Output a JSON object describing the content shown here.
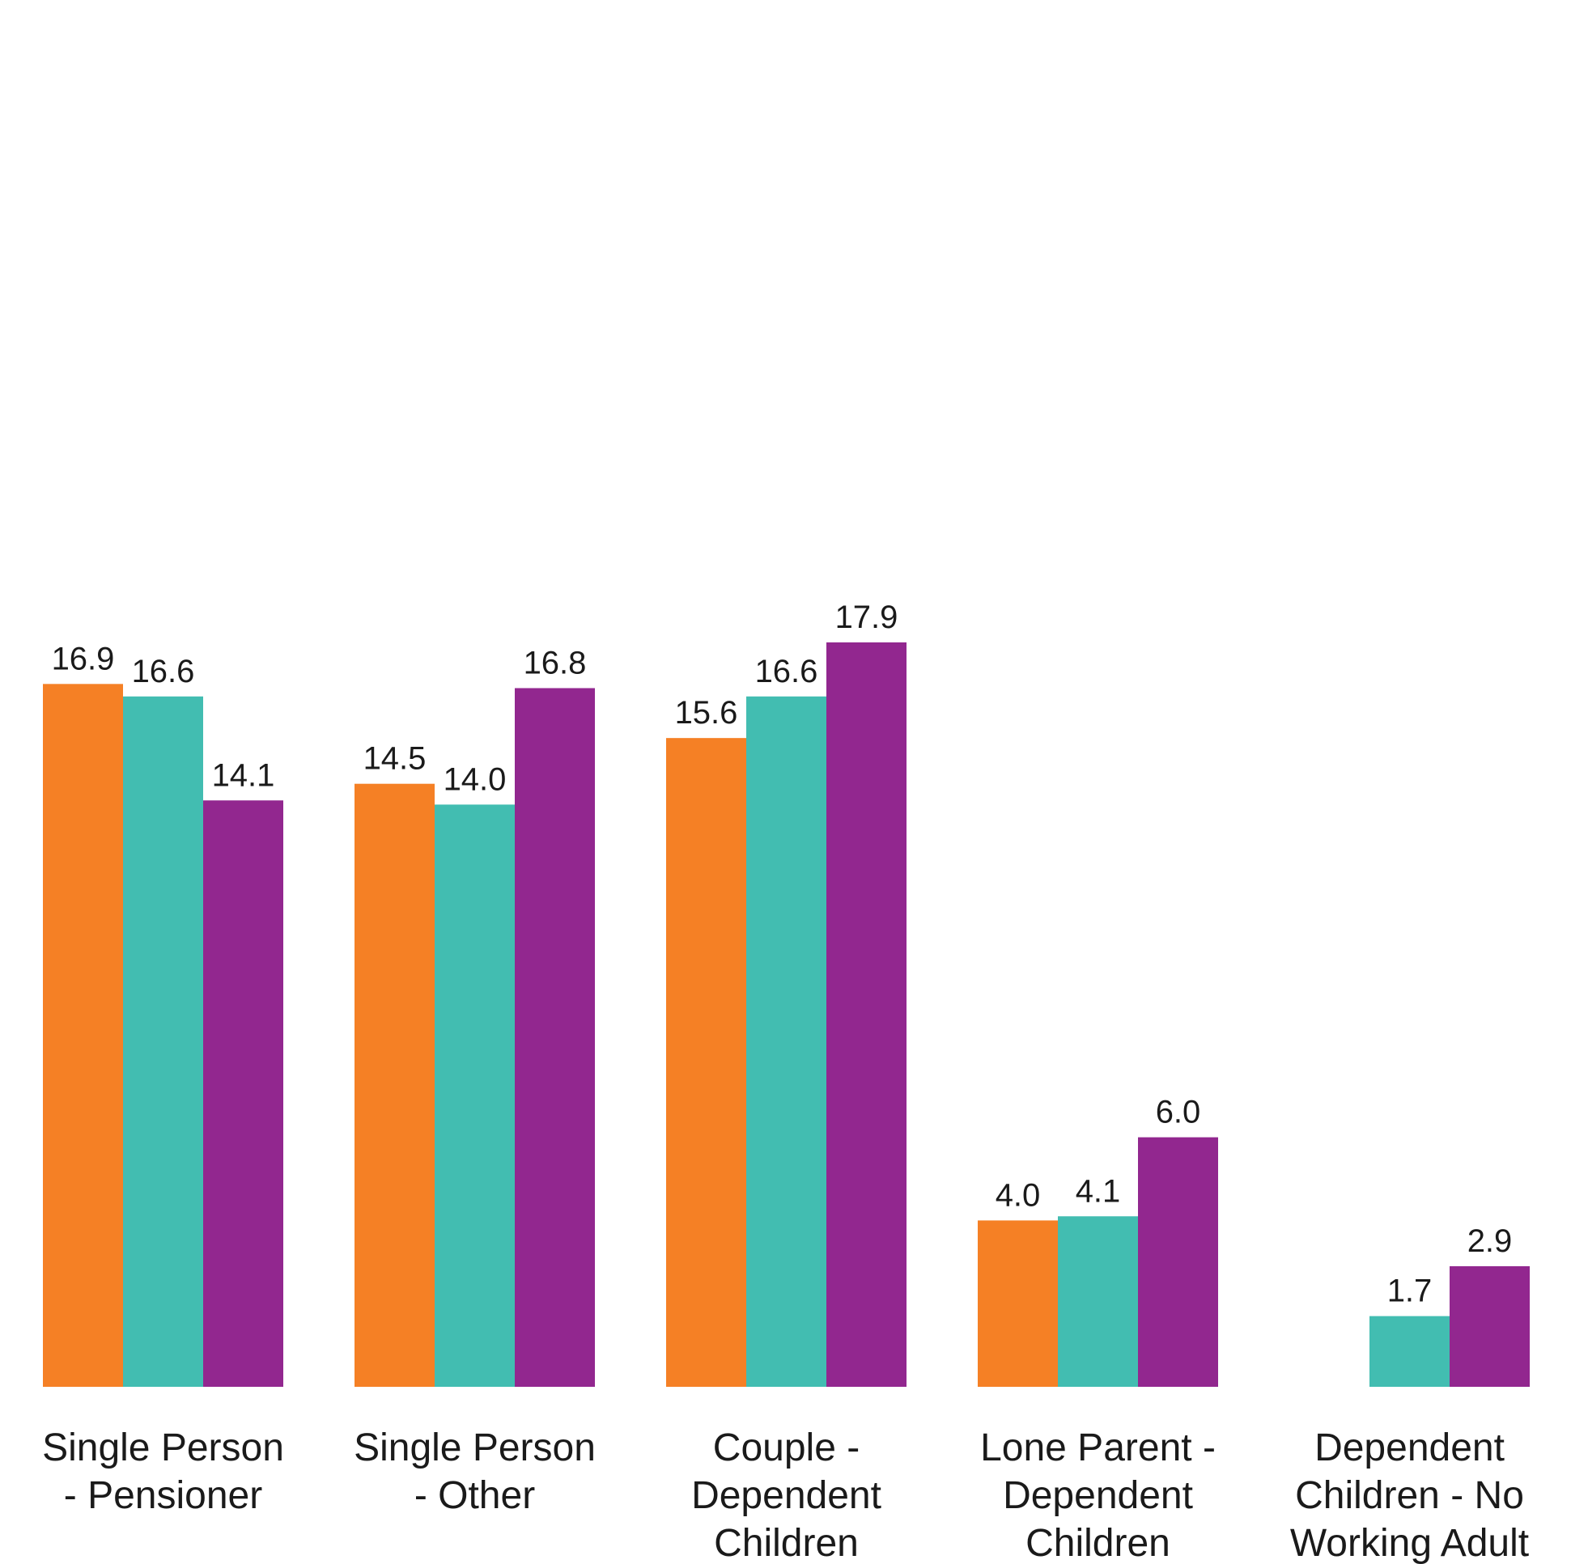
{
  "chart_data": {
    "type": "bar",
    "categories": [
      [
        "Single Person",
        "- Pensioner"
      ],
      [
        "Single Person",
        "- Other"
      ],
      [
        "Couple -",
        "Dependent",
        "Children"
      ],
      [
        "Lone Parent -",
        "Dependent",
        "Children"
      ],
      [
        "Dependent",
        "Children - No",
        "Working Adult"
      ]
    ],
    "series": [
      {
        "color": "#f58025",
        "values": [
          16.9,
          14.5,
          15.6,
          4.0,
          null
        ]
      },
      {
        "color": "#42bdb1",
        "values": [
          16.6,
          14.0,
          16.6,
          4.1,
          1.7
        ]
      },
      {
        "color": "#92278f",
        "values": [
          14.1,
          16.8,
          17.9,
          6.0,
          2.9
        ]
      }
    ],
    "value_labels": [
      [
        "16.9",
        "14.5",
        "15.6",
        "4.0",
        null
      ],
      [
        "16.6",
        "14.0",
        "16.6",
        "4.1",
        "1.7"
      ],
      [
        "14.1",
        "16.8",
        "17.9",
        "6.0",
        "2.9"
      ]
    ],
    "title": "",
    "xlabel": "",
    "ylabel": "",
    "ylim": [
      0,
      19
    ],
    "grid": false,
    "legend": "none"
  }
}
